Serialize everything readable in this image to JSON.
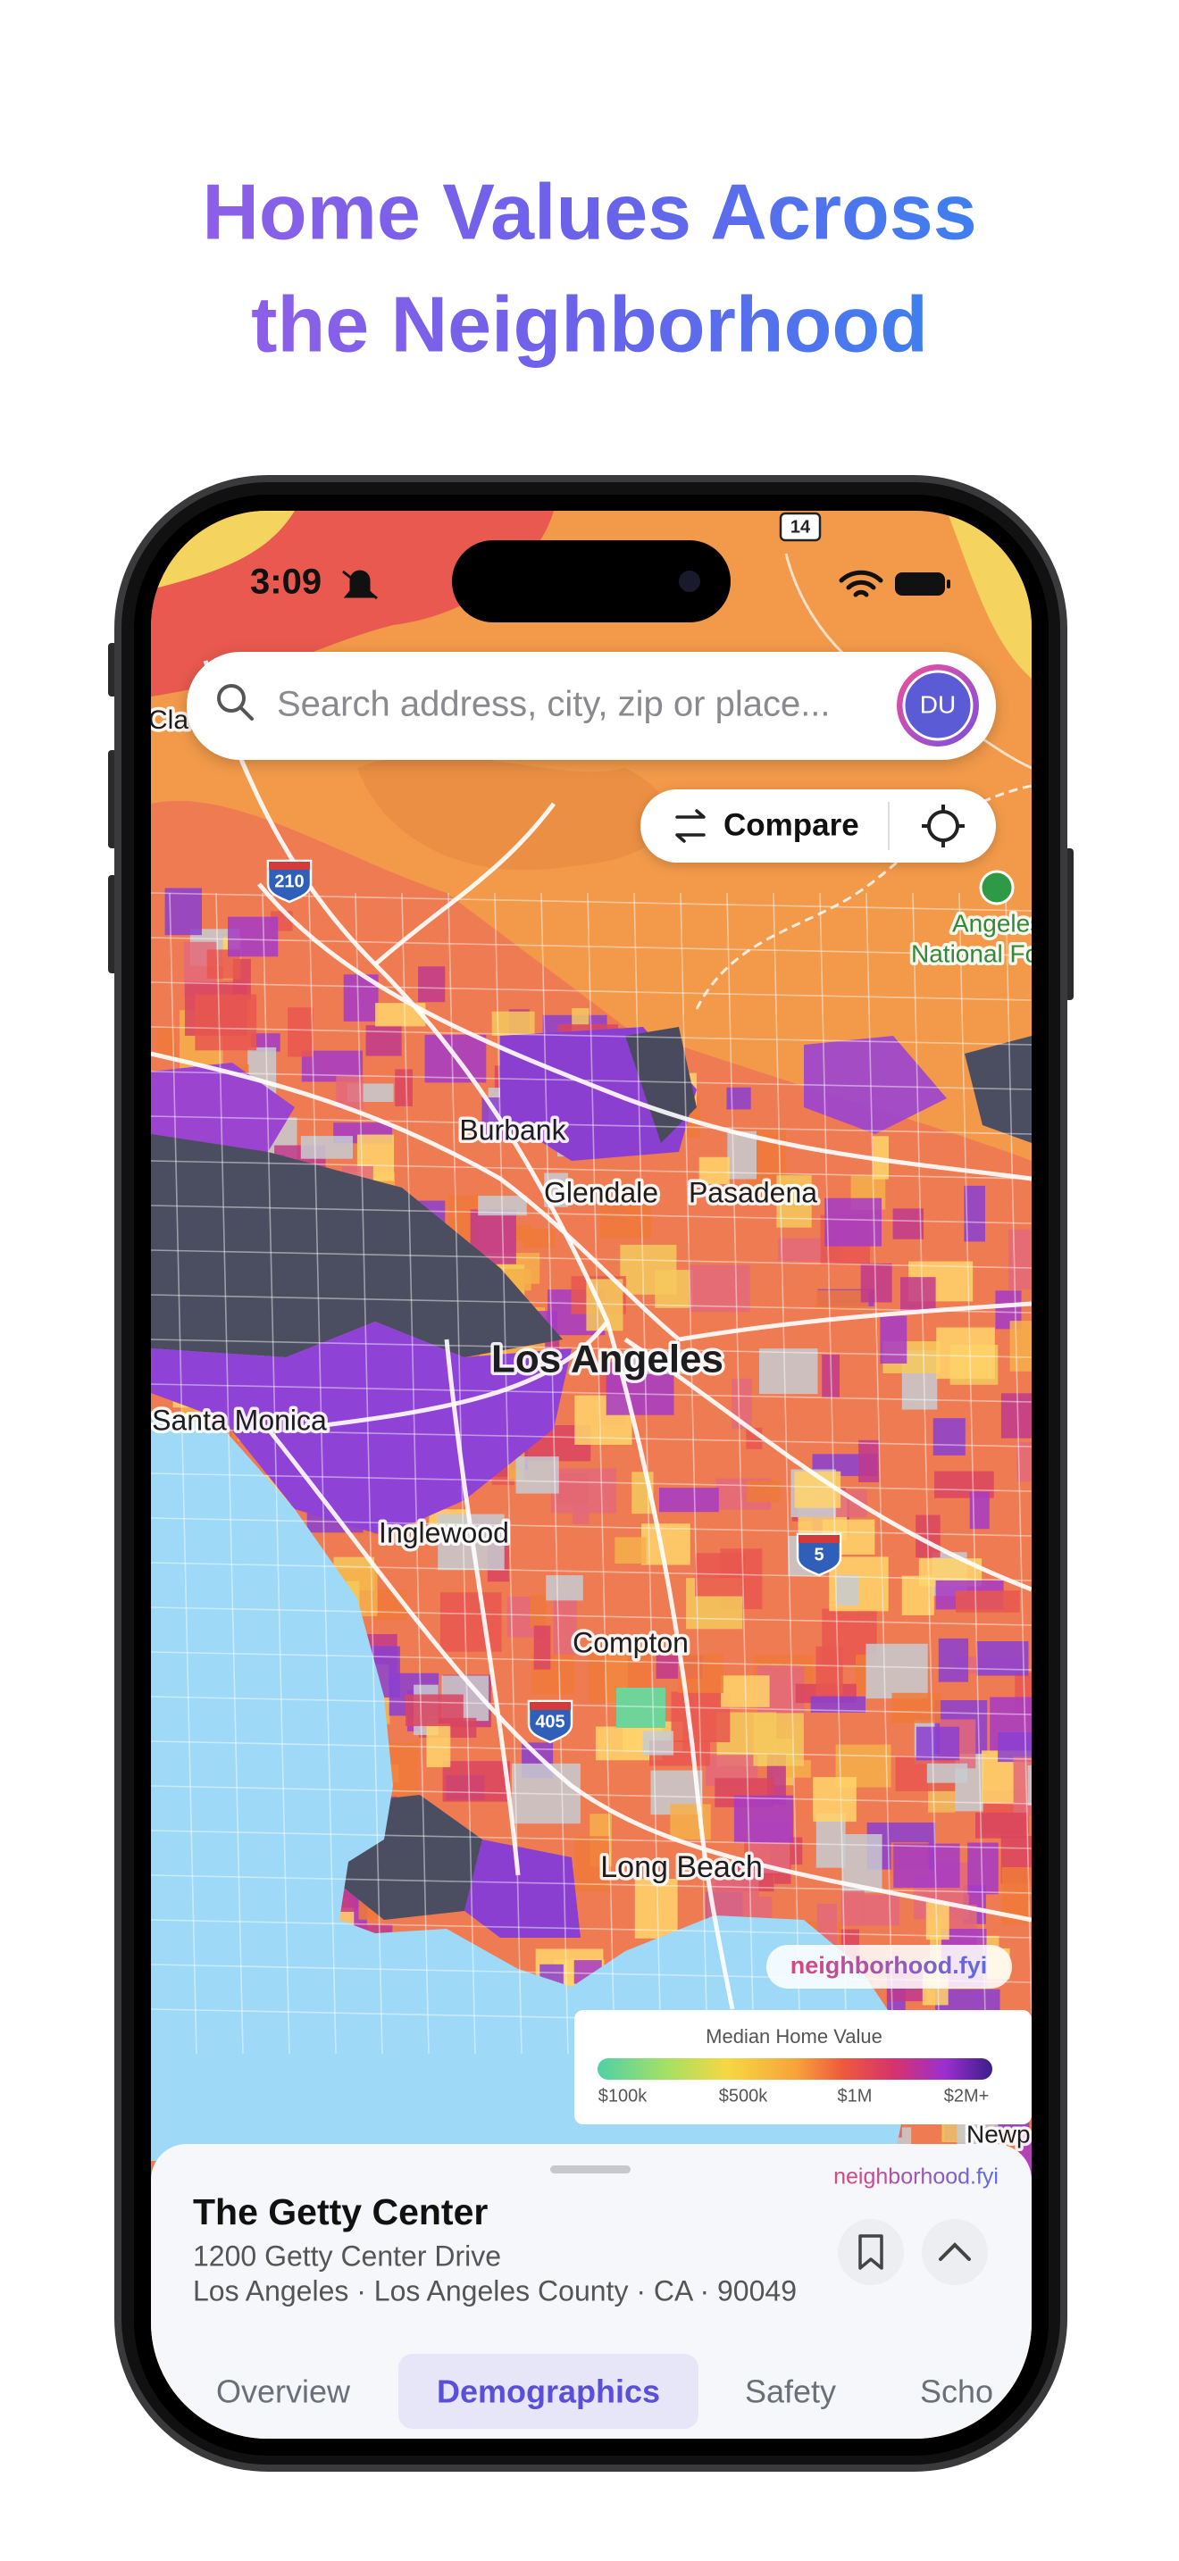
{
  "headline": {
    "lines": [
      "Home Values Across",
      "the Neighborhood"
    ]
  },
  "status_bar": {
    "time": "3:09"
  },
  "search": {
    "placeholder": "Search address, city, zip or place...",
    "avatar": "DU"
  },
  "map": {
    "compare_button": "Compare",
    "place_labels": [
      "Burbank",
      "Glendale",
      "Pasadena",
      "Los Angeles",
      "Santa Monica",
      "Inglewood",
      "Compton",
      "Long Beach"
    ],
    "partial_labels": [
      "Cla",
      "Angeles",
      "National Fo",
      "Newp"
    ],
    "shields": [
      "210",
      "405",
      "5",
      "14"
    ],
    "watermark": "neighborhood.fyi",
    "legend": {
      "title": "Median Home Value",
      "labels": [
        "$100k",
        "$500k",
        "$1M",
        "$2M+"
      ]
    }
  },
  "sheet": {
    "brand": "neighborhood.fyi",
    "title": "The Getty Center",
    "address": "1200 Getty Center Drive",
    "locality": "Los Angeles · Los Angeles County · CA · 90049",
    "tabs": [
      "Overview",
      "Demographics",
      "Safety",
      "Scho"
    ],
    "active_tab": 1
  }
}
